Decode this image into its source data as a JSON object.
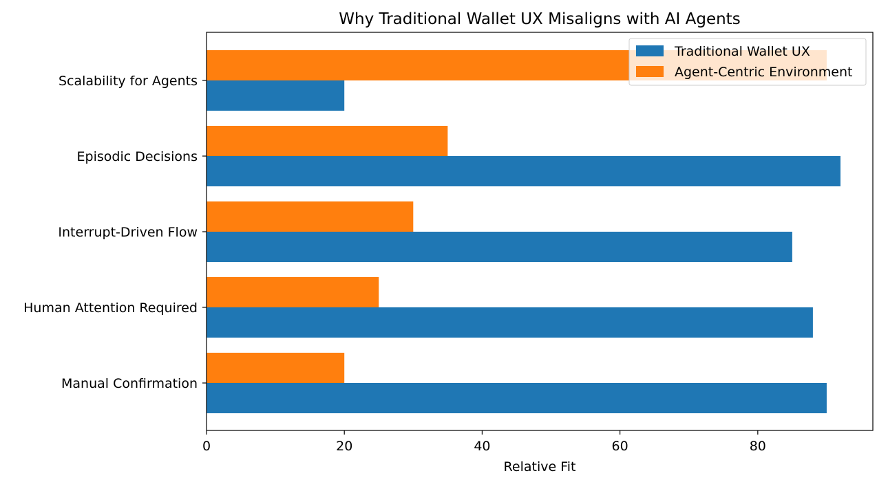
{
  "chart_data": {
    "type": "bar",
    "orientation": "horizontal",
    "title": "Why Traditional Wallet UX Misaligns with AI Agents",
    "xlabel": "Relative Fit",
    "ylabel": "",
    "xlim": [
      0,
      96.7
    ],
    "xticks": [
      0,
      20,
      40,
      60,
      80
    ],
    "categories": [
      "Manual Confirmation",
      "Human Attention Required",
      "Interrupt-Driven Flow",
      "Episodic Decisions",
      "Scalability for Agents"
    ],
    "series": [
      {
        "name": "Traditional Wallet UX",
        "color": "#1f77b4",
        "values": [
          90,
          88,
          85,
          92,
          20
        ]
      },
      {
        "name": "Agent-Centric Environment",
        "color": "#ff7f0e",
        "values": [
          20,
          25,
          30,
          35,
          90
        ]
      }
    ],
    "grid": false,
    "legend": "top-right"
  }
}
